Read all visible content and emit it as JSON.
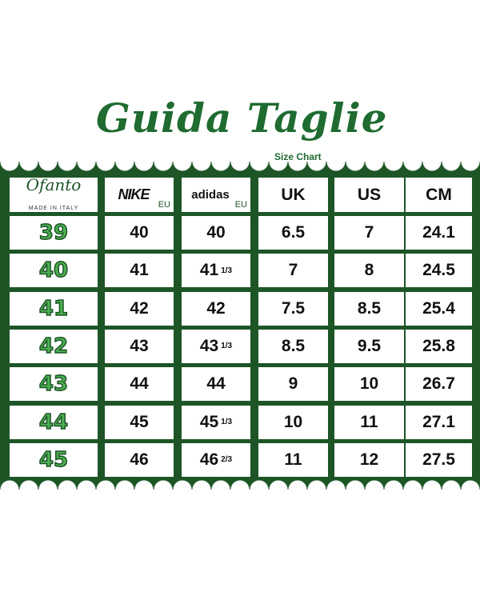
{
  "title": "Guida Taglie",
  "subtitle": "Size Chart",
  "colors": {
    "green": "#1d5527",
    "accent": "#4caf50"
  },
  "header": {
    "brand": "Ofanto",
    "brand_sub": "MADE IN ITALY",
    "nike": "NIKE",
    "nike_unit": "EU",
    "adidas": "adidas",
    "adidas_unit": "EU",
    "uk": "UK",
    "us": "US",
    "cm": "CM"
  },
  "rows": [
    {
      "size": "39",
      "nike": "40",
      "adidas": "40",
      "adidas_frac": "",
      "uk": "6.5",
      "us": "7",
      "cm": "24.1"
    },
    {
      "size": "40",
      "nike": "41",
      "adidas": "41",
      "adidas_frac": "1/3",
      "uk": "7",
      "us": "8",
      "cm": "24.5"
    },
    {
      "size": "41",
      "nike": "42",
      "adidas": "42",
      "adidas_frac": "",
      "uk": "7.5",
      "us": "8.5",
      "cm": "25.4"
    },
    {
      "size": "42",
      "nike": "43",
      "adidas": "43",
      "adidas_frac": "1/3",
      "uk": "8.5",
      "us": "9.5",
      "cm": "25.8"
    },
    {
      "size": "43",
      "nike": "44",
      "adidas": "44",
      "adidas_frac": "",
      "uk": "9",
      "us": "10",
      "cm": "26.7"
    },
    {
      "size": "44",
      "nike": "45",
      "adidas": "45",
      "adidas_frac": "1/3",
      "uk": "10",
      "us": "11",
      "cm": "27.1"
    },
    {
      "size": "45",
      "nike": "46",
      "adidas": "46",
      "adidas_frac": "2/3",
      "uk": "11",
      "us": "12",
      "cm": "27.5"
    }
  ]
}
